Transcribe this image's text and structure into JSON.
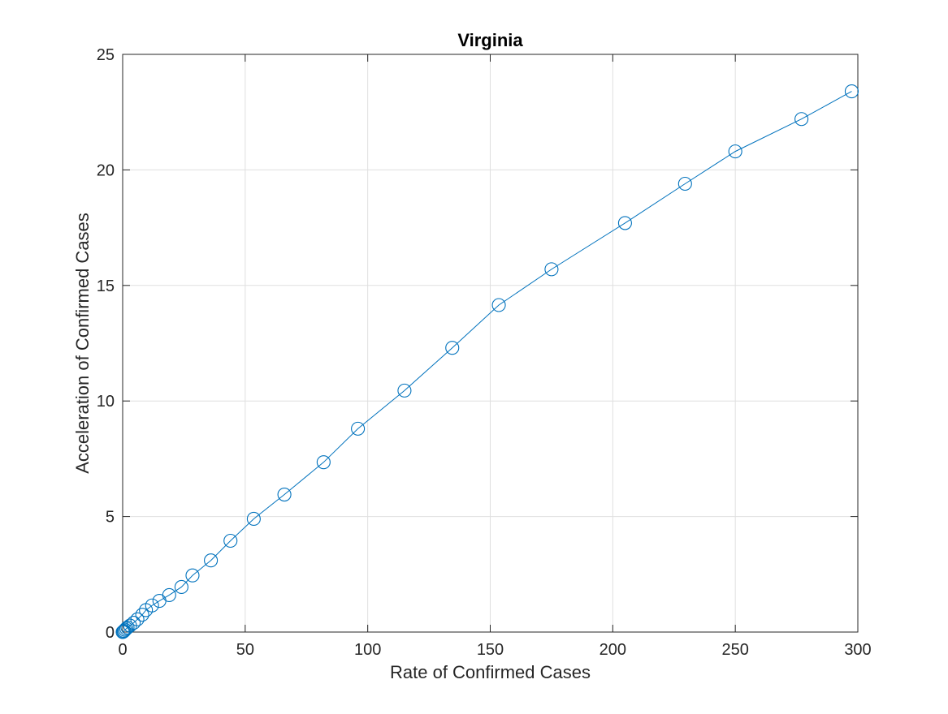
{
  "chart_data": {
    "type": "line",
    "title": "Virginia",
    "xlabel": "Rate of Confirmed Cases",
    "ylabel": "Acceleration of Confirmed Cases",
    "xlim": [
      0,
      300
    ],
    "ylim": [
      0,
      25
    ],
    "xticks": [
      0,
      50,
      100,
      150,
      200,
      250,
      300
    ],
    "yticks": [
      0,
      5,
      10,
      15,
      20,
      25
    ],
    "grid": true,
    "legend": "none",
    "marker": "open-circle",
    "series": [
      {
        "color": "#0072BD",
        "points": [
          [
            0,
            0
          ],
          [
            0.3,
            0.02
          ],
          [
            0.6,
            0.05
          ],
          [
            1.0,
            0.1
          ],
          [
            1.5,
            0.15
          ],
          [
            2.0,
            0.2
          ],
          [
            3.0,
            0.28
          ],
          [
            4.5,
            0.4
          ],
          [
            6.0,
            0.55
          ],
          [
            8.0,
            0.75
          ],
          [
            9.5,
            0.95
          ],
          [
            12.0,
            1.15
          ],
          [
            15.0,
            1.35
          ],
          [
            19.0,
            1.6
          ],
          [
            24.0,
            1.95
          ],
          [
            28.5,
            2.45
          ],
          [
            36.0,
            3.1
          ],
          [
            44.0,
            3.95
          ],
          [
            53.5,
            4.9
          ],
          [
            66.0,
            5.95
          ],
          [
            82.0,
            7.35
          ],
          [
            96.0,
            8.8
          ],
          [
            115.0,
            10.45
          ],
          [
            134.5,
            12.3
          ],
          [
            153.5,
            14.15
          ],
          [
            175.0,
            15.7
          ],
          [
            205.0,
            17.7
          ],
          [
            229.5,
            19.4
          ],
          [
            250.0,
            20.8
          ],
          [
            277.0,
            22.2
          ],
          [
            297.5,
            23.4
          ]
        ]
      }
    ]
  }
}
